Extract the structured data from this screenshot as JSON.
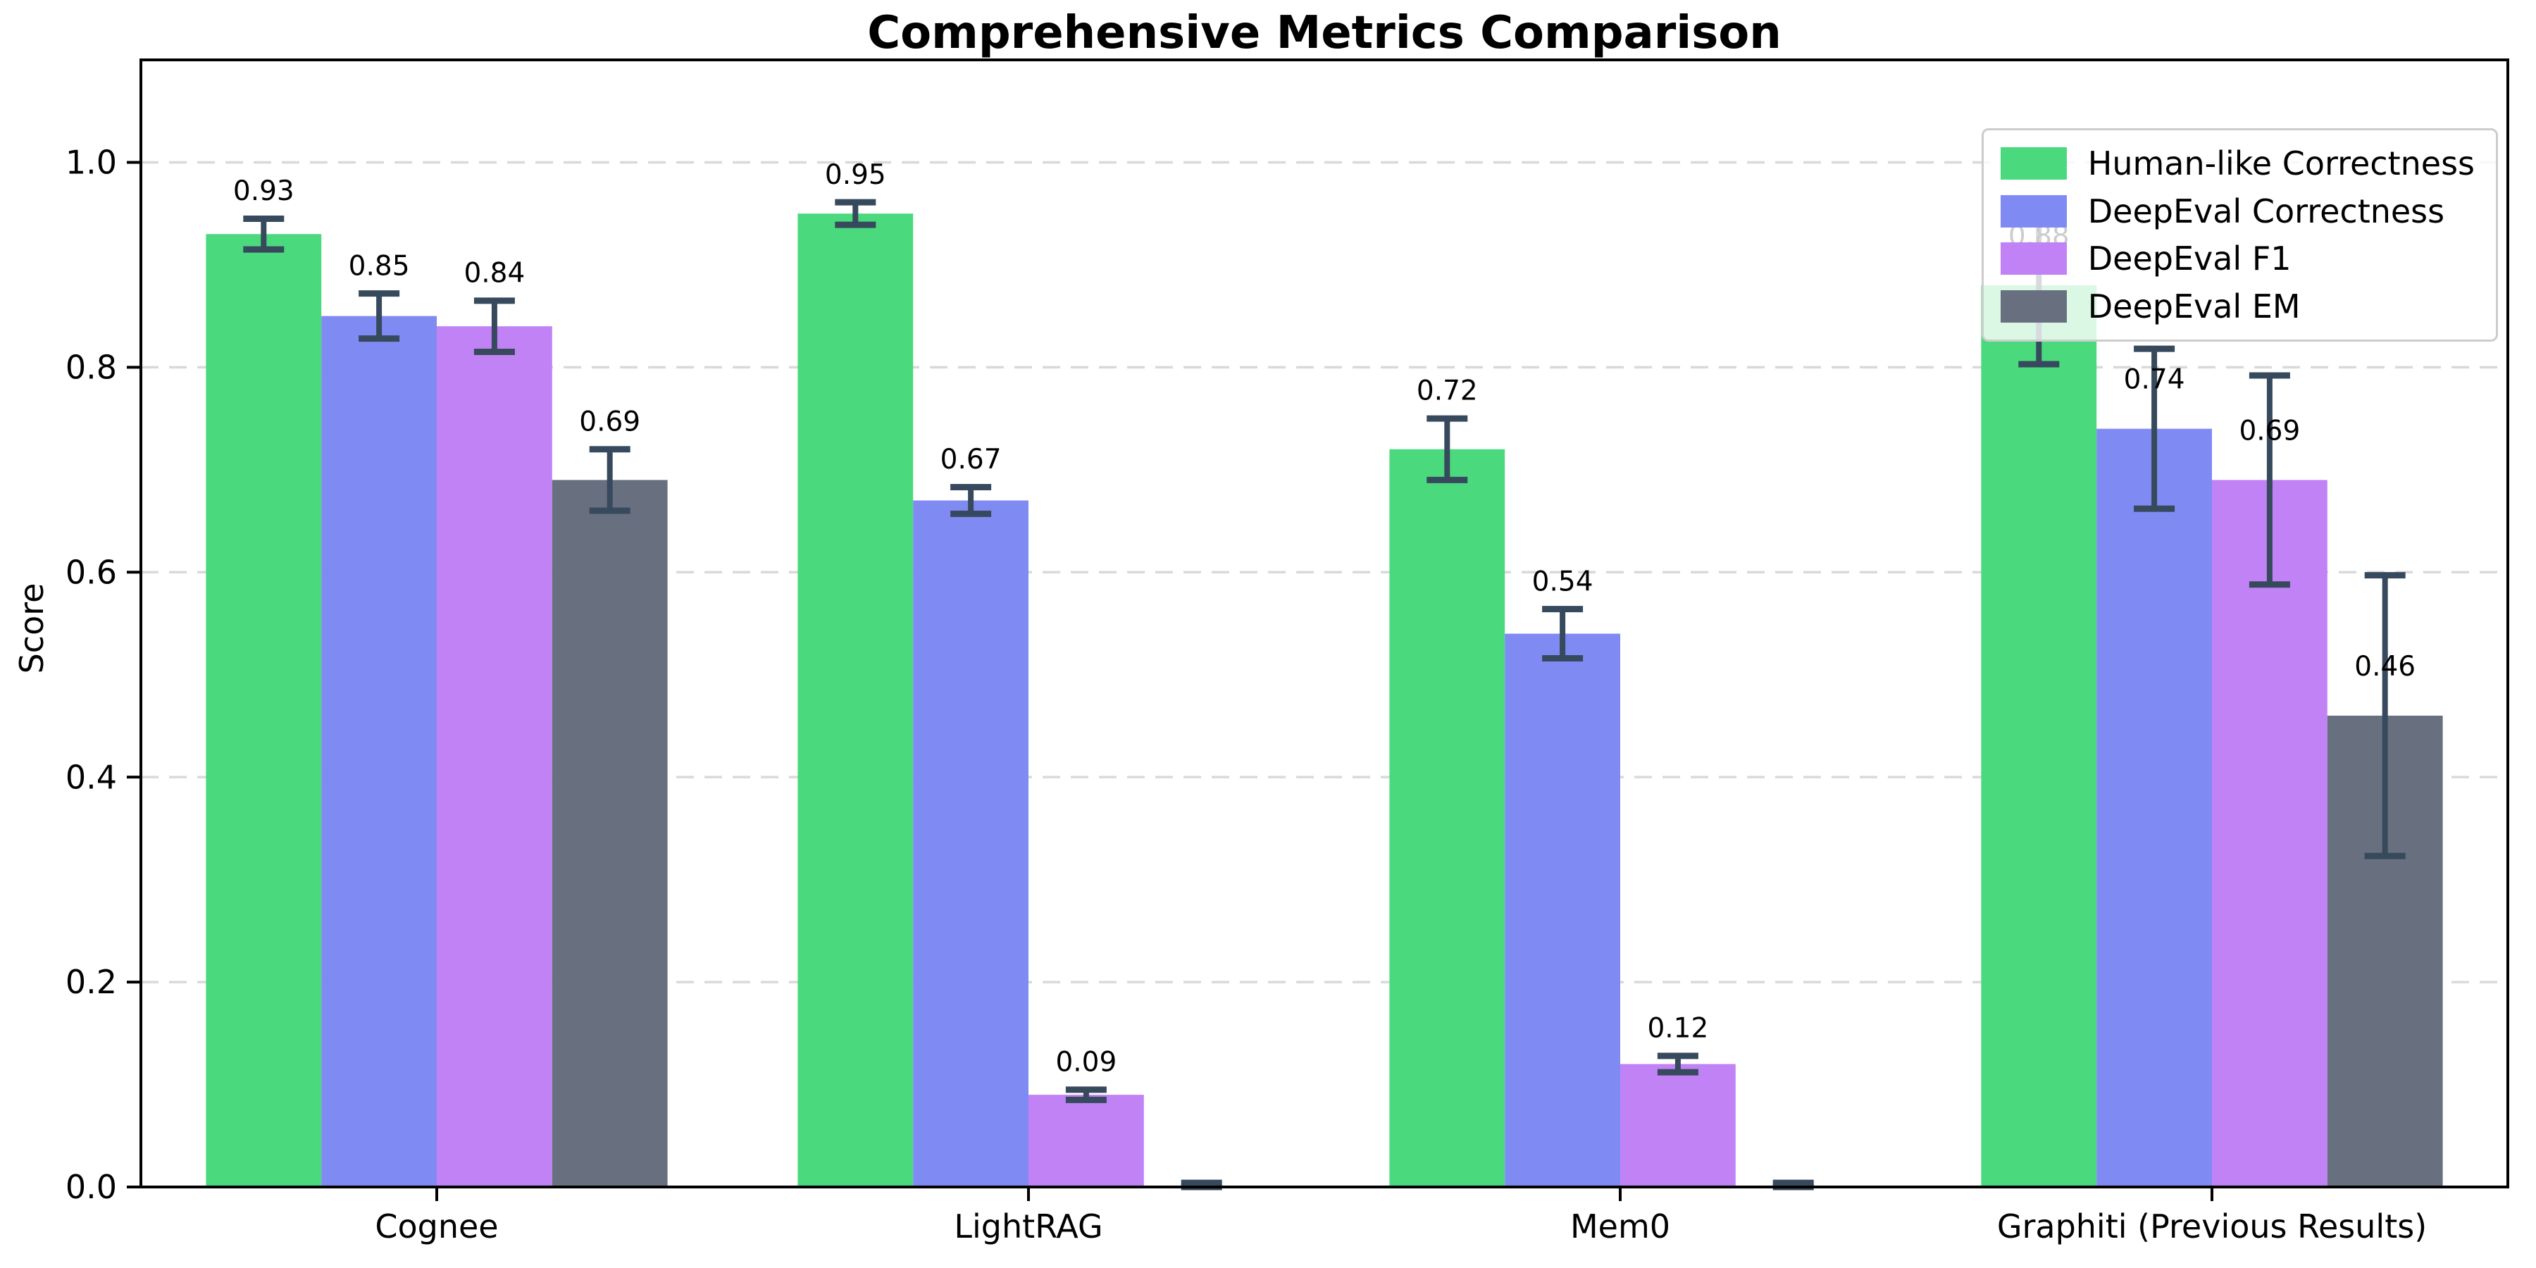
{
  "chart_data": {
    "type": "bar",
    "title": "Comprehensive Metrics Comparison",
    "xlabel": "",
    "ylabel": "Score",
    "categories": [
      "Cognee",
      "LightRAG",
      "Mem0",
      "Graphiti (Previous Results)"
    ],
    "series": [
      {
        "name": "Human-like Correctness",
        "color": "#4bd97e",
        "values": [
          0.93,
          0.95,
          0.72,
          0.88
        ],
        "errors": [
          0.015,
          0.011,
          0.03,
          0.077
        ]
      },
      {
        "name": "DeepEval Correctness",
        "color": "#7f8bf3",
        "values": [
          0.85,
          0.67,
          0.54,
          0.74
        ],
        "errors": [
          0.022,
          0.013,
          0.024,
          0.078
        ]
      },
      {
        "name": "DeepEval F1",
        "color": "#c182f6",
        "values": [
          0.84,
          0.09,
          0.12,
          0.69
        ],
        "errors": [
          0.025,
          0.005,
          0.008,
          0.102
        ]
      },
      {
        "name": "DeepEval EM",
        "color": "#687080",
        "values": [
          0.69,
          0.0,
          0.0,
          0.46
        ],
        "errors": [
          0.03,
          0.004,
          0.004,
          0.137
        ]
      }
    ],
    "bar_value_labels": {
      "Cognee": [
        "0.93",
        "0.85",
        "0.84",
        "0.69"
      ],
      "LightRAG": [
        "0.95",
        "0.67",
        "0.09",
        ""
      ],
      "Mem0": [
        "0.72",
        "0.54",
        "0.12",
        ""
      ],
      "Graphiti (Previous Results)": [
        "0.88",
        "0.74",
        "0.69",
        "0.46"
      ]
    },
    "ylim": [
      0,
      1.1
    ],
    "yticks": [
      "0.0",
      "0.2",
      "0.4",
      "0.6",
      "0.8",
      "1.0"
    ],
    "grid": "horizontal-dashed",
    "legend_position": "upper right",
    "colors": {
      "errorbar": "#37495c",
      "gridline": "#d9d9d9",
      "spine": "#000000",
      "background": "#ffffff"
    }
  }
}
